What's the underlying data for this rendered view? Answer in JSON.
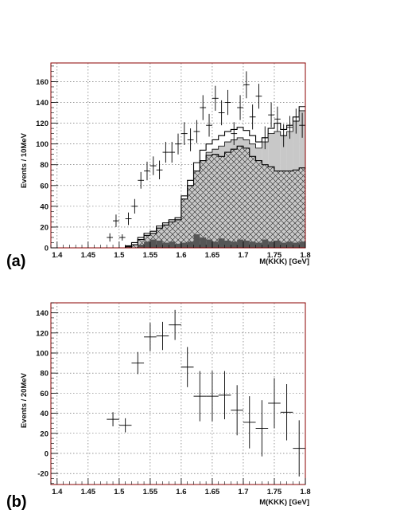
{
  "chart_data": [
    {
      "panel_label": "(a)",
      "type": "histogram",
      "xlabel": "M(KKK) [GeV]",
      "ylabel": "Events / 10MeV",
      "xlim": [
        1.39,
        1.8
      ],
      "ylim": [
        0,
        178
      ],
      "x_ticks": [
        "1.4",
        "1.45",
        "1.5",
        "1.55",
        "1.6",
        "1.65",
        "1.7",
        "1.75",
        "1.8"
      ],
      "y_ticks": [
        "0",
        "20",
        "40",
        "60",
        "80",
        "100",
        "120",
        "140",
        "160"
      ],
      "grid": true,
      "bin_width": 0.01,
      "bin_centers": [
        1.485,
        1.495,
        1.505,
        1.515,
        1.525,
        1.535,
        1.545,
        1.555,
        1.565,
        1.575,
        1.585,
        1.595,
        1.605,
        1.615,
        1.625,
        1.635,
        1.645,
        1.655,
        1.665,
        1.675,
        1.685,
        1.695,
        1.705,
        1.715,
        1.725,
        1.735,
        1.745,
        1.755,
        1.765,
        1.775,
        1.785,
        1.795
      ],
      "series": [
        {
          "style": "dark-filled",
          "values": [
            0,
            0,
            0,
            0,
            0,
            3,
            6,
            8,
            7,
            5,
            6,
            4,
            5,
            6,
            13,
            10,
            8,
            6,
            9,
            7,
            6,
            8,
            7,
            6,
            5,
            8,
            6,
            7,
            5,
            6,
            5,
            6
          ]
        },
        {
          "style": "cross-hatched",
          "values": [
            0,
            0,
            0,
            1,
            3,
            8,
            12,
            14,
            19,
            22,
            25,
            27,
            47,
            60,
            74,
            84,
            89,
            90,
            88,
            92,
            95,
            98,
            96,
            88,
            84,
            80,
            78,
            74,
            74,
            74,
            75,
            77
          ]
        },
        {
          "style": "light-gray-stack",
          "values": [
            0,
            0,
            0,
            1,
            3,
            8,
            12,
            14,
            19,
            22,
            25,
            27,
            47,
            60,
            74,
            84,
            92,
            95,
            98,
            102,
            104,
            106,
            104,
            100,
            96,
            102,
            110,
            112,
            108,
            112,
            122,
            132
          ]
        },
        {
          "style": "open-total",
          "values": [
            0,
            0,
            0,
            2,
            5,
            10,
            14,
            16,
            21,
            24,
            27,
            29,
            50,
            65,
            82,
            94,
            100,
            104,
            108,
            112,
            114,
            116,
            113,
            108,
            102,
            106,
            115,
            120,
            114,
            118,
            126,
            136
          ]
        },
        {
          "style": "data-points",
          "values": [
            10,
            26,
            10,
            28,
            40,
            65,
            74,
            79,
            75,
            92,
            92,
            100,
            110,
            104,
            112,
            135,
            118,
            144,
            130,
            140,
            110,
            135,
            157,
            126,
            146,
            106,
            128,
            124,
            108,
            116,
            122,
            118
          ],
          "yerr": [
            4,
            6,
            3,
            6,
            7,
            8,
            9,
            9,
            9,
            10,
            10,
            10,
            11,
            11,
            11,
            12,
            11,
            12,
            12,
            12,
            11,
            12,
            13,
            12,
            12,
            11,
            12,
            12,
            11,
            11,
            12,
            12
          ]
        }
      ]
    },
    {
      "panel_label": "(b)",
      "type": "scatter",
      "xlabel": "M(KKK) [GeV]",
      "ylabel": "Events / 20MeV",
      "xlim": [
        1.39,
        1.8
      ],
      "ylim": [
        -31,
        150
      ],
      "x_ticks": [
        "1.4",
        "1.45",
        "1.5",
        "1.55",
        "1.6",
        "1.65",
        "1.7",
        "1.75",
        "1.8"
      ],
      "y_ticks": [
        "-20",
        "0",
        "20",
        "40",
        "60",
        "80",
        "100",
        "120",
        "140"
      ],
      "grid": true,
      "bin_width": 0.02,
      "x": [
        1.49,
        1.51,
        1.53,
        1.55,
        1.57,
        1.59,
        1.61,
        1.63,
        1.65,
        1.67,
        1.69,
        1.71,
        1.73,
        1.75,
        1.77,
        1.79
      ],
      "y": [
        34,
        28,
        90,
        116,
        117,
        128,
        86,
        57,
        57,
        58,
        43,
        31,
        25,
        50,
        41,
        5
      ],
      "yerr": [
        7,
        7,
        11,
        14,
        14,
        15,
        20,
        25,
        25,
        24,
        25,
        26,
        28,
        25,
        28,
        28
      ]
    }
  ]
}
